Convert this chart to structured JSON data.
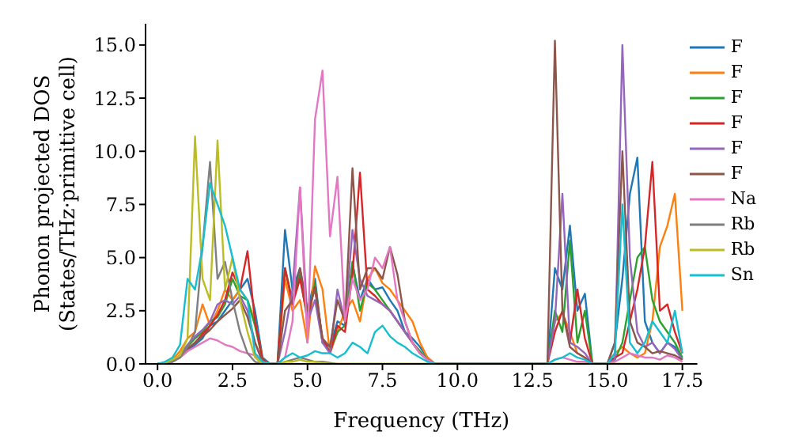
{
  "chart_data": {
    "type": "line",
    "xlabel": "Frequency (THz)",
    "ylabel": "Phonon projected DOS\n(States/THz·primitive cell)",
    "x": [
      0,
      0.25,
      0.5,
      0.75,
      1,
      1.25,
      1.5,
      1.75,
      2,
      2.25,
      2.5,
      2.75,
      3,
      3.25,
      3.5,
      3.75,
      4,
      4.25,
      4.5,
      4.75,
      5,
      5.25,
      5.5,
      5.75,
      6,
      6.25,
      6.5,
      6.75,
      7,
      7.25,
      7.5,
      7.75,
      8,
      8.25,
      8.5,
      8.75,
      9,
      9.25,
      9.5,
      9.75,
      10,
      10.25,
      10.5,
      10.75,
      11,
      11.25,
      11.5,
      11.75,
      12,
      12.25,
      12.5,
      12.75,
      13,
      13.25,
      13.5,
      13.75,
      14,
      14.25,
      14.5,
      14.75,
      15,
      15.25,
      15.5,
      15.75,
      16,
      16.25,
      16.5,
      16.75,
      17,
      17.25,
      17.5
    ],
    "series": [
      {
        "name": "F",
        "color": "#1f77b4",
        "values": [
          null,
          null,
          null,
          0.3,
          0.6,
          0.9,
          1.2,
          1.8,
          2.0,
          2.5,
          3.0,
          3.5,
          4.0,
          2.5,
          0.3,
          0,
          0,
          6.3,
          3.5,
          4.5,
          2.5,
          4.0,
          1.0,
          0.8,
          2.0,
          1.8,
          4.7,
          3.0,
          4.0,
          3.5,
          3.6,
          3.0,
          2.5,
          1.5,
          1.2,
          0.8,
          0.3,
          0,
          0,
          0,
          0,
          0,
          0,
          0,
          0,
          0,
          0,
          0,
          0,
          0,
          0,
          0,
          0,
          4.5,
          3.5,
          6.5,
          2.5,
          3.3,
          0,
          0,
          0,
          1.0,
          4.0,
          8.0,
          9.7,
          2.0,
          1.0,
          0.5,
          1.0,
          0.8,
          0.2
        ]
      },
      {
        "name": "F",
        "color": "#ff7f0e",
        "values": [
          0,
          0.05,
          0.2,
          0.6,
          1.2,
          1.5,
          2.8,
          1.8,
          2.5,
          3.5,
          3.0,
          3.5,
          3.0,
          2.0,
          0.2,
          0,
          0,
          4.0,
          2.5,
          3.0,
          1.0,
          4.6,
          3.5,
          0.5,
          1.5,
          2.5,
          3.0,
          2.0,
          4.0,
          4.5,
          3.8,
          3.5,
          3.0,
          2.5,
          2.0,
          1.0,
          0.3,
          0,
          0,
          0,
          0,
          0,
          0,
          0,
          0,
          0,
          0,
          0,
          0,
          0,
          0,
          0,
          0,
          2.0,
          2.4,
          1.5,
          0.5,
          0.3,
          0,
          0,
          0,
          0.5,
          0.8,
          0.5,
          0.3,
          0.5,
          2.0,
          5.5,
          6.5,
          8.0,
          2.5
        ]
      },
      {
        "name": "F",
        "color": "#2ca02c",
        "values": [
          0,
          0.05,
          0.1,
          0.4,
          0.8,
          1.2,
          1.5,
          2.0,
          2.2,
          2.8,
          4.0,
          3.2,
          3.0,
          1.8,
          0.2,
          0,
          0,
          4.5,
          3.0,
          4.2,
          2.0,
          3.8,
          1.0,
          0.6,
          1.5,
          1.8,
          4.8,
          2.5,
          3.8,
          3.5,
          3.0,
          2.5,
          2.0,
          1.5,
          1.0,
          0.6,
          0.2,
          0,
          0,
          0,
          0,
          0,
          0,
          0,
          0,
          0,
          0,
          0,
          0,
          0,
          0,
          0,
          0,
          2.5,
          1.5,
          5.8,
          1.0,
          2.5,
          0,
          0,
          0,
          0.2,
          1.0,
          3.0,
          5.0,
          5.5,
          3.0,
          2.0,
          1.5,
          1.0,
          0.3
        ]
      },
      {
        "name": "F",
        "color": "#d62728",
        "values": [
          null,
          null,
          null,
          null,
          0.7,
          1.0,
          1.4,
          1.8,
          2.3,
          3.0,
          4.3,
          3.5,
          5.3,
          2.0,
          0.2,
          0,
          0,
          4.5,
          2.8,
          4.0,
          2.2,
          3.6,
          1.2,
          0.5,
          1.8,
          1.5,
          4.2,
          9.0,
          3.5,
          3.2,
          2.8,
          2.5,
          2.0,
          1.5,
          1.0,
          0.5,
          0.2,
          0,
          0,
          0,
          0,
          0,
          0,
          0,
          0,
          0,
          0,
          0,
          0,
          0,
          0,
          0,
          0,
          1.5,
          2.5,
          1.0,
          3.5,
          1.2,
          0,
          0,
          0,
          0.3,
          0.5,
          2.0,
          3.5,
          5.5,
          9.5,
          2.5,
          2.8,
          1.5,
          0.5
        ]
      },
      {
        "name": "F",
        "color": "#9467bd",
        "values": [
          null,
          null,
          0.1,
          0.4,
          0.9,
          1.3,
          1.6,
          2.0,
          2.8,
          3.0,
          2.8,
          3.2,
          2.5,
          1.0,
          0.1,
          0,
          0,
          1.5,
          3.5,
          8.3,
          2.0,
          3.0,
          1.0,
          0.5,
          3.5,
          2.0,
          6.3,
          4.0,
          3.2,
          3.0,
          2.8,
          2.5,
          2.0,
          1.5,
          1.0,
          0.5,
          0.2,
          0,
          0,
          0,
          0,
          0,
          0,
          0,
          0,
          0,
          0,
          0,
          0,
          0,
          0,
          0,
          0,
          2.0,
          8.0,
          1.0,
          0.8,
          0.5,
          0,
          0,
          0,
          0.2,
          15.0,
          5.0,
          1.5,
          0.8,
          1.0,
          0.5,
          1.0,
          0.7,
          0.2
        ]
      },
      {
        "name": "F",
        "color": "#8c564b",
        "values": [
          0,
          0.05,
          0.1,
          0.3,
          0.7,
          1.0,
          1.3,
          1.6,
          2.0,
          2.3,
          2.6,
          3.0,
          2.2,
          1.0,
          0.1,
          0,
          0,
          2.5,
          3.0,
          4.5,
          2.5,
          3.5,
          1.2,
          0.8,
          3.0,
          2.0,
          9.2,
          3.5,
          4.5,
          4.5,
          4.0,
          5.5,
          4.2,
          2.0,
          1.0,
          0.5,
          0.2,
          0,
          0,
          0,
          0,
          0,
          0,
          0,
          0,
          0,
          0,
          0,
          0,
          0,
          0,
          0,
          0,
          15.2,
          2.5,
          0.8,
          0.5,
          0.3,
          0,
          0,
          0,
          1.0,
          10.0,
          2.0,
          1.0,
          0.8,
          0.5,
          0.6,
          0.5,
          0.4,
          0.2
        ]
      },
      {
        "name": "Na",
        "color": "#e377c2",
        "values": [
          0,
          0.05,
          0.1,
          0.3,
          0.6,
          0.8,
          1.0,
          1.2,
          1.1,
          0.9,
          0.8,
          0.6,
          0.5,
          0.4,
          0.1,
          0,
          0,
          0.3,
          2.0,
          8.3,
          1.0,
          11.5,
          13.8,
          6.0,
          8.8,
          2.0,
          4.0,
          3.0,
          3.5,
          5.0,
          4.5,
          5.5,
          3.0,
          2.0,
          1.0,
          0.5,
          0.2,
          0,
          0,
          0,
          0,
          0,
          0,
          0,
          0,
          0,
          0,
          0,
          0,
          0,
          0,
          0,
          0,
          0.2,
          0.3,
          0.2,
          0.1,
          0.1,
          0,
          0,
          0,
          0.1,
          0.3,
          0.5,
          0.4,
          0.3,
          0.3,
          0.2,
          0.4,
          0.3,
          0.1
        ]
      },
      {
        "name": "Rb",
        "color": "#7f7f7f",
        "values": [
          0,
          0.05,
          0.1,
          0.3,
          0.8,
          1.5,
          5.5,
          9.5,
          4.0,
          4.8,
          3.0,
          1.5,
          0.5,
          0.1,
          0,
          0,
          0,
          0.1,
          0.2,
          0.3,
          0.2,
          0.1,
          0.1,
          0.05,
          0,
          0,
          0,
          0,
          0,
          0,
          0,
          0,
          0,
          0,
          0,
          0,
          0,
          0,
          0,
          0,
          0,
          0,
          0,
          0,
          0,
          0,
          0,
          0,
          0,
          0,
          0,
          0,
          0,
          0,
          0,
          0,
          0,
          0,
          0,
          0,
          0,
          0,
          0,
          0,
          0,
          0,
          0,
          0,
          0,
          0,
          0
        ]
      },
      {
        "name": "Rb",
        "color": "#bcbd22",
        "values": [
          0,
          0.05,
          0.2,
          0.4,
          1.2,
          10.7,
          4.0,
          3.0,
          10.5,
          3.5,
          5.0,
          3.0,
          1.5,
          0.3,
          0,
          0,
          0,
          0.1,
          0.1,
          0.2,
          0.1,
          0.1,
          0.05,
          0,
          0,
          0,
          0,
          0,
          0,
          0,
          0,
          0,
          0,
          0,
          0,
          0,
          0,
          0,
          0,
          0,
          0,
          0,
          0,
          0,
          0,
          0,
          0,
          0,
          0,
          0,
          0,
          0,
          0,
          0,
          0,
          0,
          0,
          0,
          0,
          0,
          0,
          0,
          0,
          0,
          0,
          0,
          0,
          0,
          0,
          0,
          0
        ]
      },
      {
        "name": "Sn",
        "color": "#17becf",
        "values": [
          0,
          0.1,
          0.3,
          0.9,
          4.0,
          3.5,
          5.5,
          8.5,
          7.5,
          6.5,
          5.0,
          3.5,
          3.0,
          0.5,
          0.1,
          0,
          0,
          0.3,
          0.5,
          0.3,
          0.4,
          0.6,
          0.5,
          0.5,
          0.3,
          0.5,
          1.0,
          0.8,
          0.5,
          1.5,
          1.8,
          1.3,
          1.0,
          0.8,
          0.5,
          0.3,
          0.1,
          0,
          0,
          0,
          0,
          0,
          0,
          0,
          0,
          0,
          0,
          0,
          0,
          0,
          0,
          0,
          0,
          0.2,
          0.3,
          0.5,
          0.3,
          0.2,
          0,
          0,
          0,
          0.5,
          7.5,
          1.0,
          0.5,
          1.0,
          2.0,
          1.5,
          1.0,
          2.5,
          0.5
        ]
      }
    ],
    "xlim": [
      -0.4,
      18
    ],
    "xticks": [
      {
        "value": 0,
        "label": "0.0"
      },
      {
        "value": 2.5,
        "label": "2.5"
      },
      {
        "value": 5,
        "label": "5.0"
      },
      {
        "value": 7.5,
        "label": "7.5"
      },
      {
        "value": 10,
        "label": "10.0"
      },
      {
        "value": 12.5,
        "label": "12.5"
      },
      {
        "value": 15,
        "label": "15.0"
      },
      {
        "value": 17.5,
        "label": "17.5"
      }
    ],
    "ylim": [
      0,
      16
    ],
    "yticks": [
      {
        "value": 0,
        "label": "0.0"
      },
      {
        "value": 2.5,
        "label": "2.5"
      },
      {
        "value": 5,
        "label": "5.0"
      },
      {
        "value": 7.5,
        "label": "7.5"
      },
      {
        "value": 10,
        "label": "10.0"
      },
      {
        "value": 12.5,
        "label": "12.5"
      },
      {
        "value": 15,
        "label": "15.0"
      }
    ],
    "legend": "top right",
    "grid": false,
    "marker": "none",
    "line_style": "solid"
  }
}
